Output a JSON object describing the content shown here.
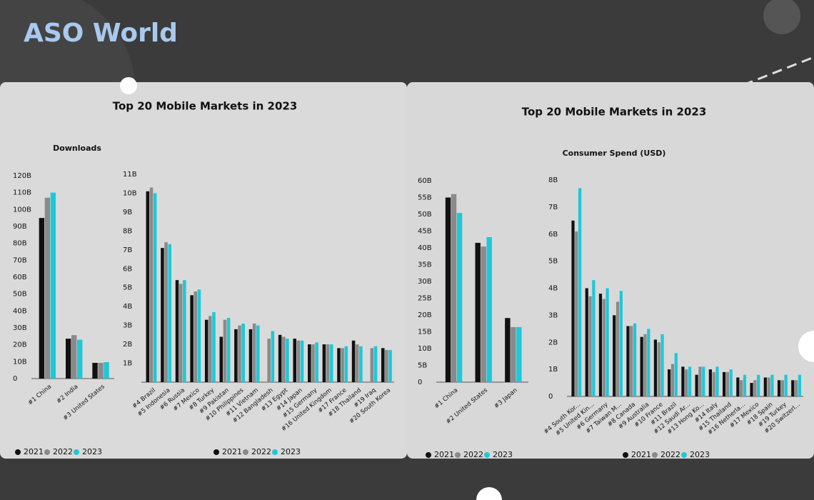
{
  "brand": "ASO World",
  "panels": [
    {
      "title": "Top 20 Mobile Markets in 2023",
      "subtitle": "Downloads"
    },
    {
      "title": "Top 20 Mobile Markets in 2023",
      "subtitle": "Consumer Spend (USD)"
    }
  ],
  "chart_data": [
    {
      "type": "bar",
      "categories": [
        "#1 China",
        "#2 India",
        "#3 United States"
      ],
      "series": [
        {
          "name": "2021",
          "color": "#111111",
          "values": [
            95,
            23.6,
            9.3
          ]
        },
        {
          "name": "2022",
          "color": "#8a8a8a",
          "values": [
            107,
            25.7,
            9.3
          ]
        },
        {
          "name": "2023",
          "color": "#1ec8d8",
          "values": [
            110,
            23,
            9.7
          ]
        }
      ],
      "ylim": [
        0,
        120
      ],
      "yticks": [
        0,
        {
          "value": 10,
          "label": "10B"
        },
        {
          "value": 20,
          "label": "20B"
        },
        {
          "value": 30,
          "label": "30B"
        },
        {
          "value": 40,
          "label": "40B"
        },
        {
          "value": 50,
          "label": "50B"
        },
        {
          "value": 60,
          "label": "60B"
        },
        {
          "value": 70,
          "label": "70B"
        },
        {
          "value": 80,
          "label": "80B"
        },
        {
          "value": 90,
          "label": "90B"
        },
        {
          "value": 100,
          "label": "100B"
        },
        {
          "value": 110,
          "label": "110B"
        },
        {
          "value": 120,
          "label": "120B"
        }
      ]
    },
    {
      "type": "bar",
      "categories": [
        "#4 Brazil",
        "#5 Indonesia",
        "#6 Russia",
        "#7 Mexico",
        "#8 Turkey",
        "#9 Pakistan",
        "#10 Philippines",
        "#11 Vietnam",
        "#12 Bangladesh",
        "#13 Egypt",
        "#14 Japan",
        "#15 Germany",
        "#16 United Kingdom",
        "#17 France",
        "#18 Thailand",
        "#19 Iraq",
        "#20 South Korea"
      ],
      "series": [
        {
          "name": "2021",
          "color": "#111111",
          "values": [
            10.1,
            7.1,
            5.4,
            4.6,
            3.3,
            2.4,
            2.8,
            2.8,
            null,
            2.5,
            2.3,
            2.0,
            2.0,
            1.8,
            2.2,
            null,
            1.8
          ]
        },
        {
          "name": "2022",
          "color": "#8a8a8a",
          "values": [
            10.3,
            7.4,
            5.2,
            4.8,
            3.5,
            3.3,
            3.0,
            3.1,
            2.3,
            2.4,
            2.2,
            2.0,
            2.0,
            1.8,
            2.0,
            1.8,
            1.7
          ]
        },
        {
          "name": "2023",
          "color": "#1ec8d8",
          "values": [
            10.0,
            7.3,
            5.4,
            4.9,
            3.7,
            3.4,
            3.1,
            3.0,
            2.7,
            2.3,
            2.2,
            2.1,
            2.0,
            1.9,
            1.9,
            1.9,
            1.7
          ]
        }
      ],
      "ylim": [
        0,
        11
      ],
      "yticks": [
        {
          "value": 1,
          "label": "1B"
        },
        {
          "value": 2,
          "label": "2B"
        },
        {
          "value": 3,
          "label": "3B"
        },
        {
          "value": 4,
          "label": "4B"
        },
        {
          "value": 5,
          "label": "5B"
        },
        {
          "value": 6,
          "label": "6B"
        },
        {
          "value": 7,
          "label": "7B"
        },
        {
          "value": 8,
          "label": "8B"
        },
        {
          "value": 9,
          "label": "9B"
        },
        {
          "value": 10,
          "label": "10B"
        },
        {
          "value": 11,
          "label": "11B"
        }
      ]
    },
    {
      "type": "bar",
      "categories": [
        "#1 China",
        "#2 United States",
        "#3 Japan"
      ],
      "series": [
        {
          "name": "2021",
          "color": "#111111",
          "values": [
            55,
            41.5,
            19.1
          ]
        },
        {
          "name": "2022",
          "color": "#8a8a8a",
          "values": [
            56,
            40.4,
            16.4
          ]
        },
        {
          "name": "2023",
          "color": "#1ec8d8",
          "values": [
            50.4,
            43.2,
            16.4
          ]
        }
      ],
      "ylim": [
        0,
        60
      ],
      "yticks": [
        0,
        {
          "value": 5,
          "label": "5B"
        },
        {
          "value": 10,
          "label": "10B"
        },
        {
          "value": 15,
          "label": "15B"
        },
        {
          "value": 20,
          "label": "20B"
        },
        {
          "value": 25,
          "label": "25B"
        },
        {
          "value": 30,
          "label": "30B"
        },
        {
          "value": 35,
          "label": "35B"
        },
        {
          "value": 40,
          "label": "40B"
        },
        {
          "value": 45,
          "label": "45B"
        },
        {
          "value": 50,
          "label": "50B"
        },
        {
          "value": 55,
          "label": "55B"
        },
        {
          "value": 60,
          "label": "60B"
        }
      ]
    },
    {
      "type": "bar",
      "categories": [
        "#4 South Kor...",
        "#5 United Kin...",
        "#6 Germany",
        "#7 Taiwan M...",
        "#8 Canada",
        "#9 Australia",
        "#10 France",
        "#11 Brazil",
        "#12 Saudi Ar...",
        "#13 Hong Ko...",
        "#14 Italy",
        "#15 Thailand",
        "#16 Netherla...",
        "#17 Mexico",
        "#18 Spain",
        "#19 Turkey",
        "#20 Switzerl..."
      ],
      "series": [
        {
          "name": "2021",
          "color": "#111111",
          "values": [
            6.5,
            4.0,
            3.8,
            3.0,
            2.6,
            2.2,
            2.1,
            1.0,
            1.1,
            0.8,
            1.0,
            0.9,
            0.7,
            0.5,
            0.7,
            0.6,
            0.6
          ]
        },
        {
          "name": "2022",
          "color": "#8a8a8a",
          "values": [
            6.1,
            3.7,
            3.6,
            3.5,
            2.6,
            2.3,
            2.0,
            1.2,
            1.0,
            1.1,
            0.9,
            0.9,
            0.6,
            0.6,
            0.7,
            0.6,
            0.6
          ]
        },
        {
          "name": "2023",
          "color": "#1ec8d8",
          "values": [
            7.7,
            4.3,
            4.0,
            3.9,
            2.7,
            2.5,
            2.3,
            1.6,
            1.1,
            1.1,
            1.1,
            1.0,
            0.8,
            0.8,
            0.8,
            0.8,
            0.8
          ]
        }
      ],
      "ylim": [
        0,
        8
      ],
      "yticks": [
        0,
        {
          "value": 1,
          "label": "1B"
        },
        {
          "value": 2,
          "label": "2B"
        },
        {
          "value": 3,
          "label": "3B"
        },
        {
          "value": 4,
          "label": "4B"
        },
        {
          "value": 5,
          "label": "5B"
        },
        {
          "value": 6,
          "label": "6B"
        },
        {
          "value": 7,
          "label": "7B"
        },
        {
          "value": 8,
          "label": "8B"
        }
      ]
    }
  ]
}
